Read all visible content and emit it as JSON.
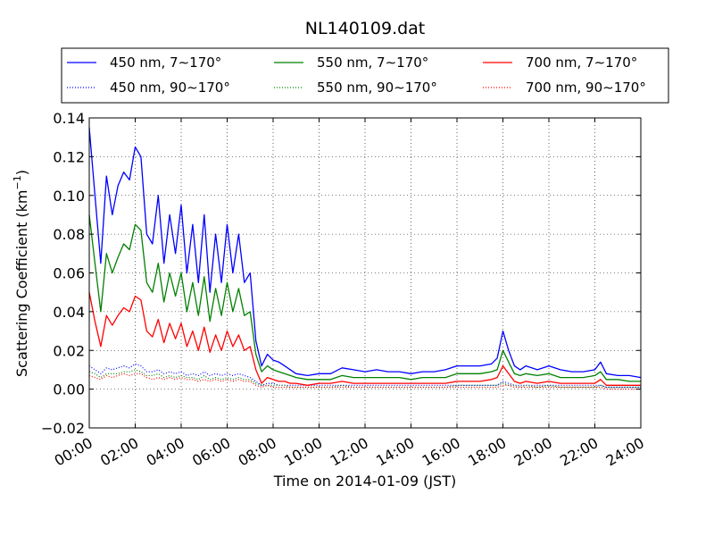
{
  "chart_data": {
    "type": "line",
    "title": "NL140109.dat",
    "xlabel": "Time on 2014-01-09 (JST)",
    "ylabel": "Scattering Coefficient (km",
    "ylabel_sup": "−1",
    "ylabel_end": ")",
    "xlim": [
      0,
      24
    ],
    "ylim": [
      -0.02,
      0.14
    ],
    "grid": true,
    "legend_position": "top",
    "x_unit": "hours JST",
    "x_ticks": [
      0,
      2,
      4,
      6,
      8,
      10,
      12,
      14,
      16,
      18,
      20,
      22,
      24
    ],
    "x_tick_labels": [
      "00:00",
      "02:00",
      "04:00",
      "06:00",
      "08:00",
      "10:00",
      "12:00",
      "14:00",
      "16:00",
      "18:00",
      "20:00",
      "22:00",
      "24:00"
    ],
    "y_ticks": [
      -0.02,
      0.0,
      0.02,
      0.04,
      0.06,
      0.08,
      0.1,
      0.12,
      0.14
    ],
    "y_tick_labels": [
      "−0.02",
      "0.00",
      "0.02",
      "0.04",
      "0.06",
      "0.08",
      "0.10",
      "0.12",
      "0.14"
    ],
    "x": [
      0.0,
      0.25,
      0.5,
      0.75,
      1.0,
      1.25,
      1.5,
      1.75,
      2.0,
      2.25,
      2.5,
      2.75,
      3.0,
      3.25,
      3.5,
      3.75,
      4.0,
      4.25,
      4.5,
      4.75,
      5.0,
      5.25,
      5.5,
      5.75,
      6.0,
      6.25,
      6.5,
      6.75,
      7.0,
      7.25,
      7.5,
      7.75,
      8.0,
      8.25,
      8.5,
      8.75,
      9.0,
      9.5,
      10.0,
      10.5,
      11.0,
      11.5,
      12.0,
      12.5,
      13.0,
      13.5,
      14.0,
      14.5,
      15.0,
      15.5,
      16.0,
      16.5,
      17.0,
      17.5,
      17.75,
      18.0,
      18.25,
      18.5,
      18.75,
      19.0,
      19.5,
      20.0,
      20.5,
      21.0,
      21.5,
      22.0,
      22.25,
      22.5,
      23.0,
      23.5,
      24.0
    ],
    "series": [
      {
        "name": "450 nm, 7∼170°",
        "color": "#0000ff",
        "style": "solid",
        "values": [
          0.135,
          0.1,
          0.065,
          0.11,
          0.09,
          0.105,
          0.112,
          0.108,
          0.125,
          0.12,
          0.08,
          0.075,
          0.1,
          0.065,
          0.09,
          0.07,
          0.095,
          0.06,
          0.085,
          0.055,
          0.09,
          0.05,
          0.08,
          0.055,
          0.085,
          0.06,
          0.08,
          0.055,
          0.06,
          0.025,
          0.012,
          0.018,
          0.015,
          0.014,
          0.012,
          0.01,
          0.008,
          0.007,
          0.008,
          0.008,
          0.011,
          0.01,
          0.009,
          0.01,
          0.009,
          0.009,
          0.008,
          0.009,
          0.009,
          0.01,
          0.012,
          0.012,
          0.012,
          0.013,
          0.016,
          0.03,
          0.02,
          0.012,
          0.01,
          0.012,
          0.01,
          0.012,
          0.01,
          0.009,
          0.009,
          0.01,
          0.014,
          0.008,
          0.007,
          0.007,
          0.006
        ]
      },
      {
        "name": "550 nm, 7∼170°",
        "color": "#008000",
        "style": "solid",
        "values": [
          0.09,
          0.065,
          0.04,
          0.07,
          0.06,
          0.068,
          0.075,
          0.072,
          0.085,
          0.082,
          0.055,
          0.05,
          0.065,
          0.045,
          0.06,
          0.048,
          0.06,
          0.04,
          0.055,
          0.038,
          0.058,
          0.035,
          0.052,
          0.038,
          0.055,
          0.04,
          0.052,
          0.038,
          0.04,
          0.018,
          0.009,
          0.012,
          0.01,
          0.009,
          0.008,
          0.007,
          0.006,
          0.005,
          0.005,
          0.005,
          0.007,
          0.006,
          0.006,
          0.006,
          0.006,
          0.006,
          0.005,
          0.006,
          0.006,
          0.006,
          0.008,
          0.008,
          0.008,
          0.009,
          0.01,
          0.02,
          0.014,
          0.008,
          0.007,
          0.008,
          0.007,
          0.008,
          0.006,
          0.006,
          0.006,
          0.007,
          0.009,
          0.005,
          0.005,
          0.004,
          0.004
        ]
      },
      {
        "name": "700 nm, 7∼170°",
        "color": "#ff0000",
        "style": "solid",
        "values": [
          0.05,
          0.035,
          0.022,
          0.038,
          0.033,
          0.038,
          0.042,
          0.04,
          0.048,
          0.046,
          0.03,
          0.027,
          0.036,
          0.024,
          0.034,
          0.026,
          0.034,
          0.022,
          0.03,
          0.02,
          0.032,
          0.019,
          0.028,
          0.02,
          0.03,
          0.022,
          0.028,
          0.02,
          0.022,
          0.01,
          0.003,
          0.006,
          0.005,
          0.004,
          0.004,
          0.003,
          0.003,
          0.002,
          0.003,
          0.003,
          0.004,
          0.003,
          0.003,
          0.003,
          0.003,
          0.003,
          0.003,
          0.003,
          0.003,
          0.003,
          0.004,
          0.004,
          0.004,
          0.005,
          0.006,
          0.012,
          0.008,
          0.004,
          0.003,
          0.004,
          0.003,
          0.004,
          0.003,
          0.003,
          0.003,
          0.003,
          0.005,
          0.002,
          0.002,
          0.002,
          0.002
        ]
      },
      {
        "name": "450 nm, 90∼170°",
        "color": "#0000ff",
        "style": "dotted",
        "values": [
          0.012,
          0.01,
          0.008,
          0.011,
          0.01,
          0.011,
          0.012,
          0.011,
          0.013,
          0.012,
          0.009,
          0.009,
          0.01,
          0.008,
          0.009,
          0.008,
          0.009,
          0.007,
          0.008,
          0.007,
          0.009,
          0.007,
          0.008,
          0.007,
          0.008,
          0.007,
          0.008,
          0.007,
          0.006,
          0.004,
          0.002,
          0.003,
          0.003,
          0.002,
          0.002,
          0.002,
          0.002,
          0.002,
          0.002,
          0.002,
          0.002,
          0.002,
          0.002,
          0.002,
          0.002,
          0.002,
          0.002,
          0.002,
          0.002,
          0.002,
          0.002,
          0.002,
          0.002,
          0.002,
          0.002,
          0.004,
          0.003,
          0.002,
          0.002,
          0.002,
          0.002,
          0.002,
          0.002,
          0.002,
          0.002,
          0.002,
          0.002,
          0.001,
          0.001,
          0.001,
          0.001
        ]
      },
      {
        "name": "550 nm, 90∼170°",
        "color": "#008000",
        "style": "dotted",
        "values": [
          0.009,
          0.008,
          0.006,
          0.008,
          0.008,
          0.008,
          0.009,
          0.009,
          0.01,
          0.009,
          0.007,
          0.007,
          0.008,
          0.006,
          0.007,
          0.006,
          0.007,
          0.006,
          0.006,
          0.005,
          0.007,
          0.005,
          0.006,
          0.005,
          0.006,
          0.005,
          0.006,
          0.005,
          0.005,
          0.003,
          0.002,
          0.002,
          0.002,
          0.002,
          0.002,
          0.001,
          0.001,
          0.001,
          0.001,
          0.001,
          0.002,
          0.001,
          0.001,
          0.001,
          0.001,
          0.001,
          0.001,
          0.001,
          0.001,
          0.001,
          0.002,
          0.002,
          0.002,
          0.002,
          0.002,
          0.003,
          0.002,
          0.002,
          0.001,
          0.002,
          0.001,
          0.002,
          0.001,
          0.001,
          0.001,
          0.001,
          0.002,
          0.001,
          0.001,
          0.001,
          0.001
        ]
      },
      {
        "name": "700 nm, 90∼170°",
        "color": "#ff0000",
        "style": "dotted",
        "values": [
          0.007,
          0.006,
          0.005,
          0.007,
          0.006,
          0.007,
          0.008,
          0.007,
          0.008,
          0.008,
          0.006,
          0.005,
          0.006,
          0.005,
          0.006,
          0.005,
          0.006,
          0.005,
          0.005,
          0.004,
          0.005,
          0.004,
          0.005,
          0.004,
          0.005,
          0.004,
          0.005,
          0.004,
          0.004,
          0.002,
          0.001,
          0.002,
          0.001,
          0.001,
          0.001,
          0.001,
          0.001,
          0.001,
          0.001,
          0.001,
          0.001,
          0.001,
          0.001,
          0.001,
          0.001,
          0.001,
          0.001,
          0.001,
          0.001,
          0.001,
          0.001,
          0.001,
          0.001,
          0.001,
          0.001,
          0.002,
          0.002,
          0.001,
          0.001,
          0.001,
          0.001,
          0.001,
          0.001,
          0.001,
          0.001,
          0.001,
          0.001,
          0.0,
          0.0,
          0.0,
          0.0
        ]
      }
    ],
    "legend_order": [
      0,
      1,
      2,
      3,
      4,
      5
    ]
  }
}
